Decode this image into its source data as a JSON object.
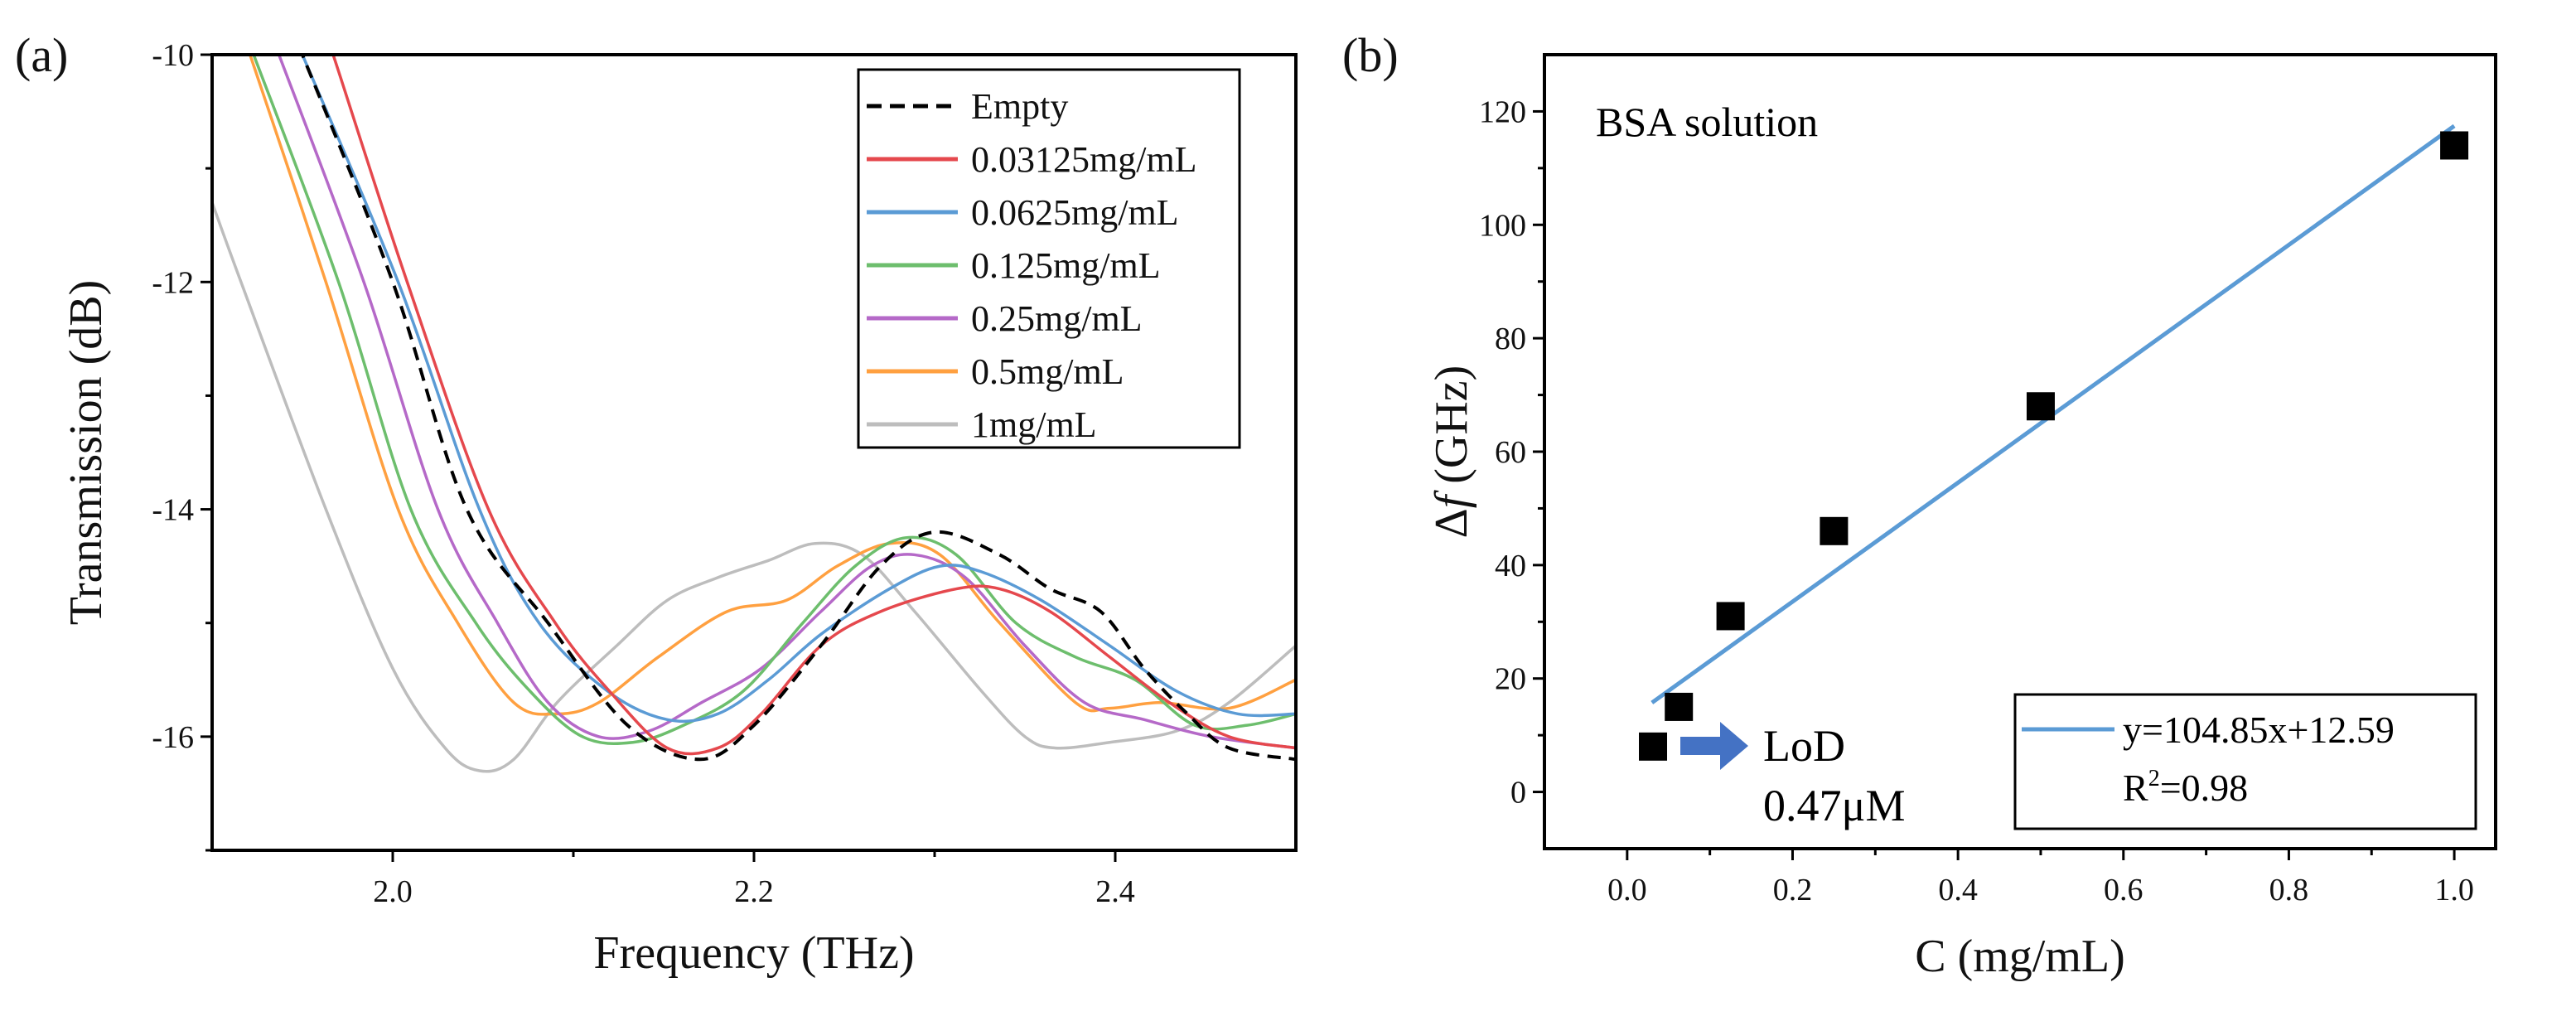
{
  "chart_data": [
    {
      "type": "line",
      "panel_label": "(a)",
      "xlabel": "Frequency (THz)",
      "ylabel": "Transmission (dB)",
      "xlim": [
        1.9,
        2.5
      ],
      "ylim": [
        -17,
        -10
      ],
      "xticks": [
        2.0,
        2.2,
        2.4
      ],
      "xtick_labels": [
        "2.0",
        "2.2",
        "2.4"
      ],
      "yticks": [
        -10,
        -12,
        -14,
        -16
      ],
      "ytick_labels": [
        "-10",
        "-12",
        "-14",
        "-16"
      ],
      "grid": false,
      "legend_position": "top-right",
      "series": [
        {
          "name": "Empty",
          "color": "#000000",
          "dashed": true,
          "x": [
            1.945,
            1.95,
            2.0,
            2.041,
            2.086,
            2.13,
            2.17,
            2.2,
            2.237,
            2.27,
            2.3,
            2.336,
            2.364,
            2.392,
            2.416,
            2.44,
            2.463,
            2.5
          ],
          "y": [
            -9.8,
            -10,
            -12,
            -14,
            -15,
            -15.9,
            -16.2,
            -15.9,
            -15.2,
            -14.5,
            -14.2,
            -14.4,
            -14.7,
            -14.9,
            -15.4,
            -15.8,
            -16.1,
            -16.2
          ]
        },
        {
          "name": "0.03125mg/mL",
          "color": "#E5484D",
          "x": [
            1.962,
            1.967,
            2.008,
            2.053,
            2.09,
            2.12,
            2.152,
            2.18,
            2.204,
            2.237,
            2.27,
            2.312,
            2.336,
            2.364,
            2.397,
            2.43,
            2.463,
            2.5
          ],
          "y": [
            -9.8,
            -10,
            -12,
            -14,
            -15,
            -15.6,
            -16.1,
            -16.1,
            -15.8,
            -15.2,
            -14.9,
            -14.7,
            -14.7,
            -14.9,
            -15.3,
            -15.7,
            -16.0,
            -16.1
          ]
        },
        {
          "name": "0.0625mg/mL",
          "color": "#5B9BD5",
          "x": [
            1.945,
            1.95,
            2.003,
            2.048,
            2.081,
            2.119,
            2.152,
            2.18,
            2.208,
            2.237,
            2.275,
            2.303,
            2.326,
            2.359,
            2.397,
            2.434,
            2.468,
            2.5
          ],
          "y": [
            -9.8,
            -10,
            -12,
            -14,
            -15,
            -15.6,
            -15.85,
            -15.8,
            -15.5,
            -15.1,
            -14.7,
            -14.5,
            -14.55,
            -14.8,
            -15.2,
            -15.6,
            -15.8,
            -15.8
          ]
        },
        {
          "name": "0.125mg/mL",
          "color": "#6DBE6D",
          "x": [
            1.918,
            1.923,
            1.97,
            2.01,
            2.046,
            2.076,
            2.105,
            2.133,
            2.161,
            2.194,
            2.227,
            2.256,
            2.284,
            2.312,
            2.345,
            2.378,
            2.411,
            2.444,
            2.473,
            2.5
          ],
          "y": [
            -9.8,
            -10,
            -12,
            -14,
            -15,
            -15.6,
            -16.0,
            -16.05,
            -15.9,
            -15.6,
            -15.0,
            -14.5,
            -14.25,
            -14.4,
            -15.0,
            -15.3,
            -15.5,
            -15.9,
            -15.9,
            -15.8
          ]
        },
        {
          "name": "0.25mg/mL",
          "color": "#B569C8",
          "x": [
            1.932,
            1.937,
            1.984,
            2.025,
            2.058,
            2.086,
            2.114,
            2.142,
            2.171,
            2.204,
            2.237,
            2.265,
            2.289,
            2.317,
            2.35,
            2.383,
            2.416,
            2.453,
            2.5
          ],
          "y": [
            -9.8,
            -10,
            -12,
            -14,
            -15,
            -15.7,
            -16.0,
            -15.95,
            -15.7,
            -15.4,
            -14.9,
            -14.5,
            -14.4,
            -14.6,
            -15.2,
            -15.7,
            -15.85,
            -16.0,
            -16.1
          ]
        },
        {
          "name": "0.5mg/mL",
          "color": "#FFA040",
          "x": [
            1.916,
            1.921,
            1.963,
            2.003,
            2.036,
            2.067,
            2.091,
            2.114,
            2.147,
            2.185,
            2.218,
            2.246,
            2.275,
            2.303,
            2.336,
            2.378,
            2.397,
            2.425,
            2.463,
            2.5
          ],
          "y": [
            -9.8,
            -10,
            -12,
            -14,
            -15,
            -15.7,
            -15.8,
            -15.7,
            -15.3,
            -14.9,
            -14.8,
            -14.5,
            -14.3,
            -14.4,
            -15.0,
            -15.7,
            -15.75,
            -15.7,
            -15.75,
            -15.5
          ]
        },
        {
          "name": "1mg/mL",
          "color": "#BDBDBD",
          "x": [
            1.9,
            1.916,
            1.963,
            2.0,
            2.029,
            2.048,
            2.067,
            2.091,
            2.124,
            2.152,
            2.18,
            2.208,
            2.234,
            2.26,
            2.289,
            2.326,
            2.35,
            2.367,
            2.397,
            2.434,
            2.463,
            2.5
          ],
          "y": [
            -11.3,
            -12,
            -14,
            -15.4,
            -16.1,
            -16.3,
            -16.2,
            -15.7,
            -15.2,
            -14.8,
            -14.6,
            -14.45,
            -14.3,
            -14.4,
            -14.9,
            -15.6,
            -16.0,
            -16.1,
            -16.05,
            -15.95,
            -15.7,
            -15.2
          ]
        }
      ]
    },
    {
      "type": "scatter",
      "panel_label": "(b)",
      "xlabel": "C (mg/mL)",
      "ylabel_parts": {
        "delta": "Δ",
        "f": "f",
        "unit": " (GHz)"
      },
      "xlim": [
        -0.1,
        1.05
      ],
      "ylim": [
        -10,
        130
      ],
      "xticks": [
        0.0,
        0.2,
        0.4,
        0.6,
        0.8,
        1.0
      ],
      "xtick_labels": [
        "0.0",
        "0.2",
        "0.4",
        "0.6",
        "0.8",
        "1.0"
      ],
      "yticks": [
        0,
        20,
        40,
        60,
        80,
        100,
        120
      ],
      "ytick_labels": [
        "0",
        "20",
        "40",
        "60",
        "80",
        "100",
        "120"
      ],
      "grid": false,
      "legend_position": "bottom-right",
      "points": {
        "x": [
          0.03125,
          0.0625,
          0.125,
          0.25,
          0.5,
          1.0
        ],
        "y": [
          8,
          15,
          31,
          46,
          68,
          114
        ],
        "color": "#000000",
        "marker": "square"
      },
      "fit": {
        "slope": 104.85,
        "intercept": 12.59,
        "x_range": [
          0.03,
          1.0
        ],
        "color": "#5B9BD5",
        "equation": "y=104.85x+12.59",
        "r2_prefix": "R",
        "r2_sup": "2",
        "r2_value": "=0.98"
      },
      "annotation_title": "BSA solution",
      "lod": {
        "label": "LoD",
        "value": "0.47μM",
        "arrow_color": "#4472C4"
      }
    }
  ]
}
